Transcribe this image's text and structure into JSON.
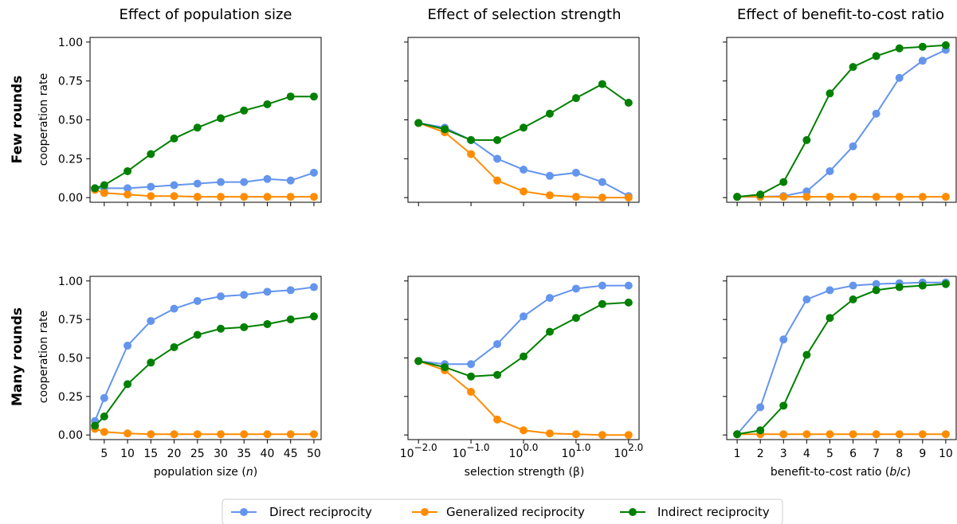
{
  "column_titles": [
    "Effect of population size",
    "Effect of selection strength",
    "Effect of benefit-to-cost ratio"
  ],
  "row_titles": [
    "Few rounds",
    "Many rounds"
  ],
  "ylabel": "cooperation rate",
  "xlabels": [
    "population size (n)",
    "selection strength (β)",
    "benefit-to-cost ratio (b/c)"
  ],
  "legend": [
    "Direct reciprocity",
    "Generalized reciprocity",
    "Indirect reciprocity"
  ],
  "colors": {
    "direct": "#6495ED",
    "generalized": "#FF8C00",
    "indirect": "#008000"
  },
  "chart_data": [
    {
      "type": "line",
      "panel": "few-rounds-population",
      "x": [
        3,
        5,
        10,
        15,
        20,
        25,
        30,
        35,
        40,
        45,
        50
      ],
      "xticks": [
        5,
        10,
        15,
        20,
        25,
        30,
        35,
        40,
        45,
        50
      ],
      "yticks": [
        "0.00",
        "0.25",
        "0.50",
        "0.75",
        "1.00"
      ],
      "ylim": [
        -0.03,
        1.03
      ],
      "series": [
        {
          "name": "Direct reciprocity",
          "values": [
            0.06,
            0.06,
            0.06,
            0.07,
            0.08,
            0.09,
            0.1,
            0.1,
            0.12,
            0.11,
            0.16
          ]
        },
        {
          "name": "Generalized reciprocity",
          "values": [
            0.05,
            0.03,
            0.02,
            0.01,
            0.01,
            0.005,
            0.005,
            0.005,
            0.005,
            0.005,
            0.005
          ]
        },
        {
          "name": "Indirect reciprocity",
          "values": [
            0.06,
            0.08,
            0.17,
            0.28,
            0.38,
            0.45,
            0.51,
            0.56,
            0.6,
            0.65,
            0.65
          ]
        }
      ]
    },
    {
      "type": "line",
      "panel": "few-rounds-selection",
      "xscale": "log",
      "x": [
        -2.0,
        -1.5,
        -1.0,
        -0.5,
        0.0,
        0.5,
        1.0,
        1.5,
        2.0
      ],
      "xticks": [
        -2.0,
        -1.0,
        0.0,
        1.0,
        2.0
      ],
      "ylim": [
        -0.03,
        1.03
      ],
      "series": [
        {
          "name": "Direct reciprocity",
          "values": [
            0.48,
            0.45,
            0.37,
            0.25,
            0.18,
            0.14,
            0.16,
            0.1,
            0.01
          ]
        },
        {
          "name": "Generalized reciprocity",
          "values": [
            0.48,
            0.42,
            0.28,
            0.11,
            0.04,
            0.015,
            0.005,
            0.0,
            0.0
          ]
        },
        {
          "name": "Indirect reciprocity",
          "values": [
            0.48,
            0.44,
            0.37,
            0.37,
            0.45,
            0.54,
            0.64,
            0.73,
            0.61
          ]
        }
      ]
    },
    {
      "type": "line",
      "panel": "few-rounds-benefit",
      "x": [
        1,
        2,
        3,
        4,
        5,
        6,
        7,
        8,
        9,
        10
      ],
      "xticks": [
        1,
        2,
        3,
        4,
        5,
        6,
        7,
        8,
        9,
        10
      ],
      "ylim": [
        -0.03,
        1.03
      ],
      "series": [
        {
          "name": "Direct reciprocity",
          "values": [
            0.005,
            0.005,
            0.01,
            0.04,
            0.17,
            0.33,
            0.54,
            0.77,
            0.88,
            0.95
          ]
        },
        {
          "name": "Generalized reciprocity",
          "values": [
            0.005,
            0.005,
            0.005,
            0.005,
            0.005,
            0.005,
            0.005,
            0.005,
            0.005,
            0.005
          ]
        },
        {
          "name": "Indirect reciprocity",
          "values": [
            0.005,
            0.02,
            0.1,
            0.37,
            0.67,
            0.84,
            0.91,
            0.96,
            0.97,
            0.98
          ]
        }
      ]
    },
    {
      "type": "line",
      "panel": "many-rounds-population",
      "x": [
        3,
        5,
        10,
        15,
        20,
        25,
        30,
        35,
        40,
        45,
        50
      ],
      "xticks": [
        5,
        10,
        15,
        20,
        25,
        30,
        35,
        40,
        45,
        50
      ],
      "yticks": [
        "0.00",
        "0.25",
        "0.50",
        "0.75",
        "1.00"
      ],
      "ylim": [
        -0.03,
        1.03
      ],
      "series": [
        {
          "name": "Direct reciprocity",
          "values": [
            0.09,
            0.24,
            0.58,
            0.74,
            0.82,
            0.87,
            0.9,
            0.91,
            0.93,
            0.94,
            0.96
          ]
        },
        {
          "name": "Generalized reciprocity",
          "values": [
            0.04,
            0.02,
            0.01,
            0.005,
            0.005,
            0.005,
            0.005,
            0.005,
            0.005,
            0.005,
            0.005
          ]
        },
        {
          "name": "Indirect reciprocity",
          "values": [
            0.06,
            0.12,
            0.33,
            0.47,
            0.57,
            0.65,
            0.69,
            0.7,
            0.72,
            0.75,
            0.77
          ]
        }
      ]
    },
    {
      "type": "line",
      "panel": "many-rounds-selection",
      "xscale": "log",
      "x": [
        -2.0,
        -1.5,
        -1.0,
        -0.5,
        0.0,
        0.5,
        1.0,
        1.5,
        2.0
      ],
      "xticks": [
        -2.0,
        -1.0,
        0.0,
        1.0,
        2.0
      ],
      "ylim": [
        -0.03,
        1.03
      ],
      "series": [
        {
          "name": "Direct reciprocity",
          "values": [
            0.48,
            0.46,
            0.46,
            0.59,
            0.77,
            0.89,
            0.95,
            0.97,
            0.97
          ]
        },
        {
          "name": "Generalized reciprocity",
          "values": [
            0.48,
            0.42,
            0.28,
            0.1,
            0.03,
            0.01,
            0.005,
            0.0,
            0.0
          ]
        },
        {
          "name": "Indirect reciprocity",
          "values": [
            0.48,
            0.44,
            0.38,
            0.39,
            0.51,
            0.67,
            0.76,
            0.85,
            0.86
          ]
        }
      ]
    },
    {
      "type": "line",
      "panel": "many-rounds-benefit",
      "x": [
        1,
        2,
        3,
        4,
        5,
        6,
        7,
        8,
        9,
        10
      ],
      "xticks": [
        1,
        2,
        3,
        4,
        5,
        6,
        7,
        8,
        9,
        10
      ],
      "ylim": [
        -0.03,
        1.03
      ],
      "series": [
        {
          "name": "Direct reciprocity",
          "values": [
            0.005,
            0.18,
            0.62,
            0.88,
            0.94,
            0.97,
            0.98,
            0.985,
            0.99,
            0.99
          ]
        },
        {
          "name": "Generalized reciprocity",
          "values": [
            0.005,
            0.005,
            0.005,
            0.005,
            0.005,
            0.005,
            0.005,
            0.005,
            0.005,
            0.005
          ]
        },
        {
          "name": "Indirect reciprocity",
          "values": [
            0.005,
            0.03,
            0.19,
            0.52,
            0.76,
            0.88,
            0.94,
            0.96,
            0.97,
            0.98
          ]
        }
      ]
    }
  ]
}
